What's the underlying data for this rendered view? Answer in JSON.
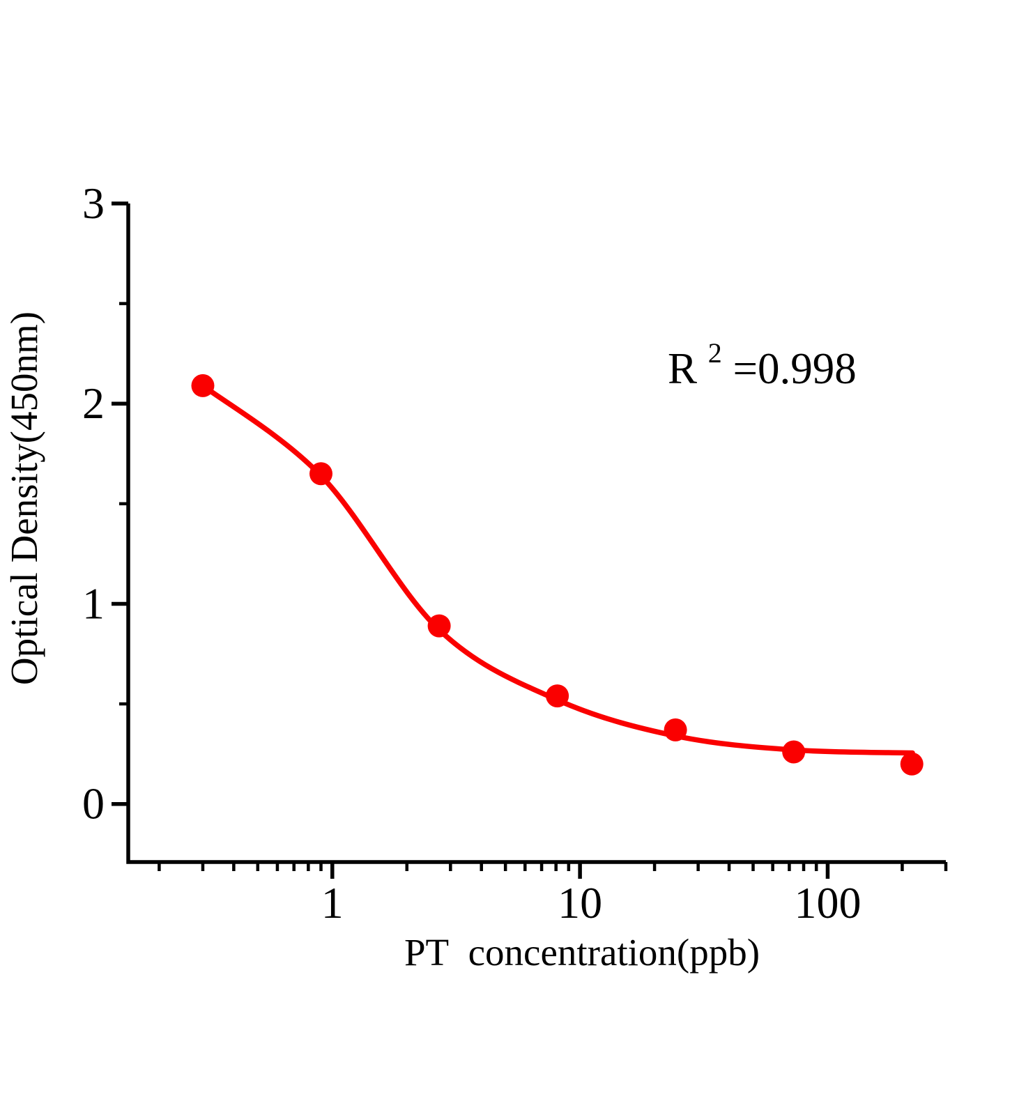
{
  "chart_data": {
    "type": "scatter",
    "title": "",
    "xlabel": "PT  concentration(ppb)",
    "ylabel": "Optical Density(450nm)",
    "annotation": {
      "base": "R",
      "superscript": "2",
      "value": "=0.998",
      "display": "R^2=0.998"
    },
    "x_axis": {
      "scale": "log",
      "range": [
        0.15,
        300
      ],
      "major_ticks": [
        1,
        10,
        100
      ],
      "major_labels": [
        "1",
        "10",
        "100"
      ],
      "minor_ticks": [
        0.2,
        0.3,
        0.4,
        0.5,
        0.6,
        0.7,
        0.8,
        0.9,
        2,
        3,
        4,
        5,
        6,
        7,
        8,
        9,
        20,
        30,
        40,
        50,
        60,
        70,
        80,
        90,
        200,
        300
      ]
    },
    "y_axis": {
      "scale": "linear",
      "range": [
        -0.29,
        3
      ],
      "major_ticks": [
        0,
        1,
        2,
        3
      ],
      "major_labels": [
        "0",
        "1",
        "2",
        "3"
      ],
      "minor_ticks": [
        0.5,
        1.5,
        2.5
      ]
    },
    "points": [
      {
        "x": 0.3,
        "y": 2.09
      },
      {
        "x": 0.9,
        "y": 1.65
      },
      {
        "x": 2.7,
        "y": 0.89
      },
      {
        "x": 8.1,
        "y": 0.54
      },
      {
        "x": 24.3,
        "y": 0.37
      },
      {
        "x": 72.9,
        "y": 0.26
      },
      {
        "x": 218.7,
        "y": 0.2
      }
    ],
    "fit_curve_points": [
      [
        0.3,
        2.09
      ],
      [
        0.9,
        1.64
      ],
      [
        2.7,
        0.87
      ],
      [
        8.1,
        0.52
      ],
      [
        24.3,
        0.34
      ],
      [
        72.9,
        0.27
      ],
      [
        220,
        0.255
      ]
    ],
    "legend": null,
    "grid": "off",
    "colors": {
      "series": "#fa0000",
      "axis": "#000000",
      "text": "#000000",
      "background": "#ffffff"
    }
  }
}
